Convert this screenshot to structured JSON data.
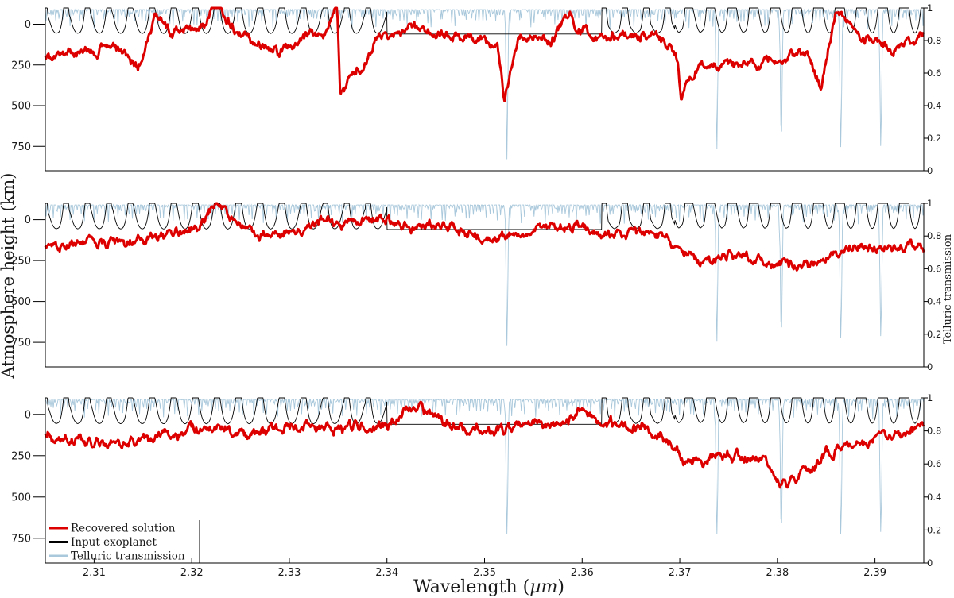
{
  "chart_data": {
    "type": "line",
    "layout": "3 stacked panels sharing the wavelength axis",
    "xlabel": "Wavelength (µm)",
    "xlabel_parts": {
      "base": "Wavelength (",
      "italic": "µm",
      "close": ")"
    },
    "ylabel_left": "Atmosphere height (km)",
    "ylabel_right": "Telluric transmission",
    "xlim": [
      2.305,
      2.395
    ],
    "x_ticks": [
      2.31,
      2.32,
      2.33,
      2.34,
      2.35,
      2.36,
      2.37,
      2.38,
      2.39
    ],
    "x_tick_labels": [
      "2.31",
      "2.32",
      "2.33",
      "2.34",
      "2.35",
      "2.36",
      "2.37",
      "2.38",
      "2.39"
    ],
    "y_left_ticks": [
      0,
      250,
      500,
      750
    ],
    "y_left_tick_labels": [
      "0",
      "250",
      "500",
      "750"
    ],
    "y_left_range_top": -100,
    "y_right_ticks": [
      0,
      0.2,
      0.4,
      0.6,
      0.8,
      1
    ],
    "y_right_tick_labels": [
      "0",
      "0.2",
      "0.4",
      "0.6",
      "0.8",
      "1"
    ],
    "legend": {
      "placement": "bottom-left of bottom panel",
      "entries": [
        {
          "label": "Recovered solution",
          "color": "#dd0000"
        },
        {
          "label": "Input exoplanet",
          "color": "#000000"
        },
        {
          "label": "Telluric transmission",
          "color": "#a9c8db"
        }
      ]
    },
    "series": [
      {
        "name": "Recovered solution",
        "axis": "left",
        "color": "#dd0000",
        "note": "noisy recovered height profile, one realisation per panel"
      },
      {
        "name": "Input exoplanet",
        "axis": "left",
        "color": "#000000",
        "line_spacing_um": 0.0022,
        "baseline_km": 60,
        "band_head_um": 2.3695,
        "line_depth_before_band_head_km": 400,
        "line_depth_after_band_head_km": 780,
        "flat_region_um": [
          2.34,
          2.362
        ]
      },
      {
        "name": "Telluric transmission",
        "axis": "right",
        "color": "#a9c8db",
        "continuum": 0.99,
        "strong_lines_um": [
          2.3523,
          2.3804,
          2.3738,
          2.3865,
          2.3906
        ]
      }
    ],
    "panels": [
      {
        "index": 1,
        "show_right_title": false,
        "noise_seed": 7,
        "recovered_anchors": [
          [
            2.305,
            200
          ],
          [
            2.309,
            160
          ],
          [
            2.312,
            140
          ],
          [
            2.3145,
            260
          ],
          [
            2.3163,
            -60
          ],
          [
            2.318,
            60
          ],
          [
            2.3215,
            10
          ],
          [
            2.3222,
            -120
          ],
          [
            2.326,
            110
          ],
          [
            2.329,
            170
          ],
          [
            2.3335,
            60
          ],
          [
            2.3349,
            -100
          ],
          [
            2.3352,
            430
          ],
          [
            2.339,
            90
          ],
          [
            2.343,
            40
          ],
          [
            2.347,
            80
          ],
          [
            2.3513,
            140
          ],
          [
            2.352,
            490
          ],
          [
            2.3535,
            50
          ],
          [
            2.3568,
            120
          ],
          [
            2.3585,
            -60
          ],
          [
            2.3613,
            90
          ],
          [
            2.368,
            80
          ],
          [
            2.3698,
            200
          ],
          [
            2.3701,
            460
          ],
          [
            2.372,
            250
          ],
          [
            2.3775,
            260
          ],
          [
            2.383,
            160
          ],
          [
            2.3845,
            420
          ],
          [
            2.386,
            -100
          ],
          [
            2.389,
            100
          ],
          [
            2.392,
            150
          ],
          [
            2.395,
            50
          ]
        ]
      },
      {
        "index": 2,
        "show_right_title": true,
        "noise_seed": 19,
        "recovered_anchors": [
          [
            2.305,
            180
          ],
          [
            2.309,
            130
          ],
          [
            2.313,
            140
          ],
          [
            2.317,
            110
          ],
          [
            2.32,
            60
          ],
          [
            2.3225,
            -60
          ],
          [
            2.3265,
            90
          ],
          [
            2.33,
            90
          ],
          [
            2.334,
            10
          ],
          [
            2.336,
            -10
          ],
          [
            2.34,
            20
          ],
          [
            2.343,
            40
          ],
          [
            2.347,
            30
          ],
          [
            2.35,
            110
          ],
          [
            2.355,
            80
          ],
          [
            2.358,
            20
          ],
          [
            2.362,
            60
          ],
          [
            2.366,
            60
          ],
          [
            2.3695,
            150
          ],
          [
            2.372,
            280
          ],
          [
            2.376,
            230
          ],
          [
            2.38,
            290
          ],
          [
            2.384,
            250
          ],
          [
            2.387,
            180
          ],
          [
            2.391,
            130
          ],
          [
            2.395,
            190
          ]
        ]
      },
      {
        "index": 3,
        "show_right_title": false,
        "noise_seed": 41,
        "recovered_anchors": [
          [
            2.305,
            120
          ],
          [
            2.31,
            180
          ],
          [
            2.313,
            190
          ],
          [
            2.318,
            110
          ],
          [
            2.322,
            90
          ],
          [
            2.326,
            110
          ],
          [
            2.33,
            70
          ],
          [
            2.334,
            60
          ],
          [
            2.338,
            100
          ],
          [
            2.3425,
            -30
          ],
          [
            2.346,
            50
          ],
          [
            2.35,
            100
          ],
          [
            2.354,
            60
          ],
          [
            2.358,
            60
          ],
          [
            2.36,
            -10
          ],
          [
            2.364,
            70
          ],
          [
            2.368,
            90
          ],
          [
            2.3705,
            300
          ],
          [
            2.374,
            250
          ],
          [
            2.378,
            260
          ],
          [
            2.381,
            420
          ],
          [
            2.3845,
            250
          ],
          [
            2.388,
            200
          ],
          [
            2.391,
            140
          ],
          [
            2.395,
            70
          ]
        ]
      }
    ]
  }
}
